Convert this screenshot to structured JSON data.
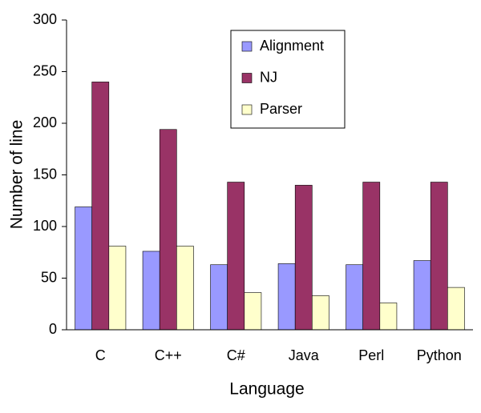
{
  "chart_data": {
    "type": "bar",
    "x_label": "Language",
    "y_label": "Number of line",
    "categories": [
      "C",
      "C++",
      "C#",
      "Java",
      "Perl",
      "Python"
    ],
    "series": [
      {
        "name": "Alignment",
        "color": "#9999ff",
        "values": [
          119,
          76,
          63,
          64,
          63,
          67
        ]
      },
      {
        "name": "NJ",
        "color": "#993366",
        "values": [
          240,
          194,
          143,
          140,
          143,
          143
        ]
      },
      {
        "name": "Parser",
        "color": "#ffffcc",
        "values": [
          81,
          81,
          36,
          33,
          26,
          41
        ]
      }
    ],
    "ylim": [
      0,
      300
    ],
    "yticks": [
      0,
      50,
      100,
      150,
      200,
      250,
      300
    ],
    "grid": false,
    "legend_position": "top-center"
  }
}
